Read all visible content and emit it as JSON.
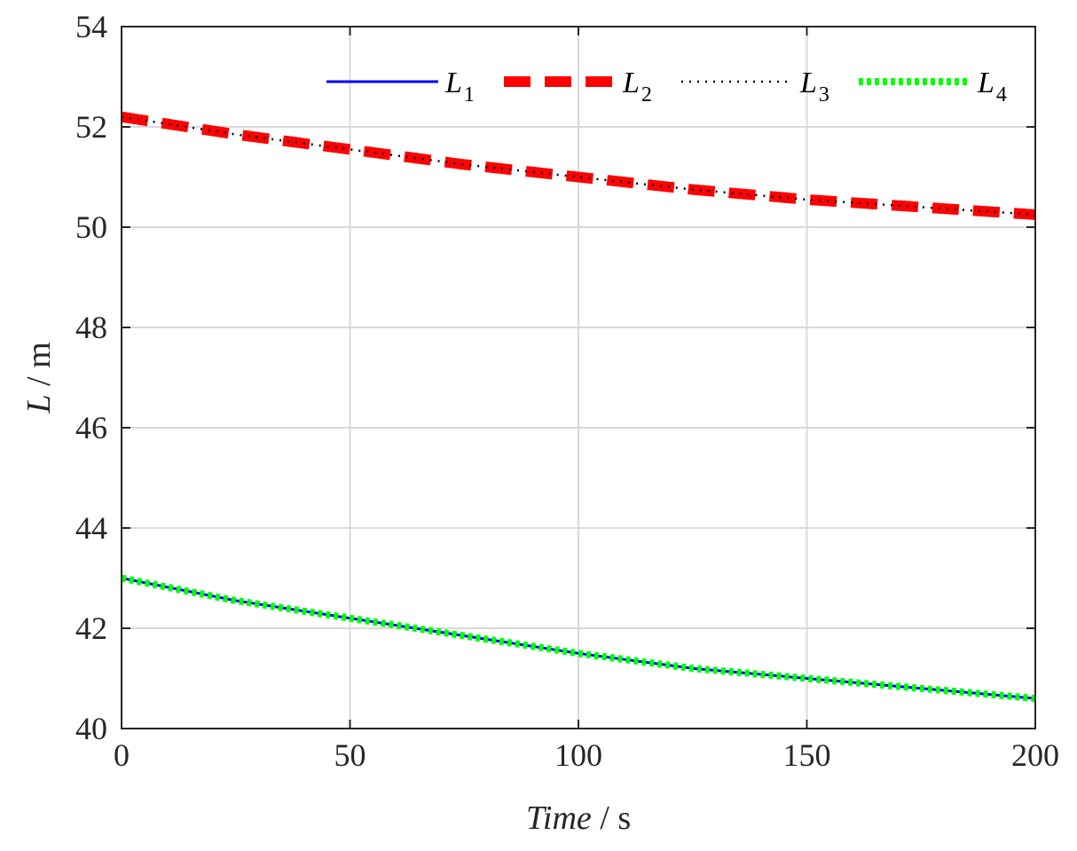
{
  "chart_data": {
    "type": "line",
    "xlabel_main": "Time",
    "xlabel_unit": "/ s",
    "ylabel_main": "L",
    "ylabel_unit": "/ m",
    "xlim": [
      0,
      200
    ],
    "ylim": [
      40,
      54
    ],
    "xticks": [
      0,
      50,
      100,
      150,
      200
    ],
    "yticks": [
      40,
      42,
      44,
      46,
      48,
      50,
      52,
      54
    ],
    "grid": true,
    "legend_placement": "top-right",
    "x": [
      0,
      25,
      50,
      75,
      100,
      125,
      150,
      175,
      200
    ],
    "series": [
      {
        "name": "L",
        "subscript": "1",
        "color": "#0000ff",
        "style": "solid",
        "values": [
          43.0,
          42.55,
          42.2,
          41.85,
          41.5,
          41.2,
          41.0,
          40.8,
          40.6
        ]
      },
      {
        "name": "L",
        "subscript": "2",
        "color": "#ff0000",
        "style": "dashed",
        "values": [
          52.2,
          51.85,
          51.55,
          51.25,
          51.0,
          50.75,
          50.55,
          50.4,
          50.25
        ]
      },
      {
        "name": "L",
        "subscript": "3",
        "color": "#000000",
        "style": "dotted",
        "values": [
          52.2,
          51.85,
          51.55,
          51.25,
          51.0,
          50.75,
          50.55,
          50.4,
          50.25
        ]
      },
      {
        "name": "L",
        "subscript": "4",
        "color": "#00ff00",
        "style": "dotted-thick",
        "values": [
          43.0,
          42.55,
          42.2,
          41.85,
          41.5,
          41.2,
          41.0,
          40.8,
          40.6
        ]
      }
    ]
  }
}
